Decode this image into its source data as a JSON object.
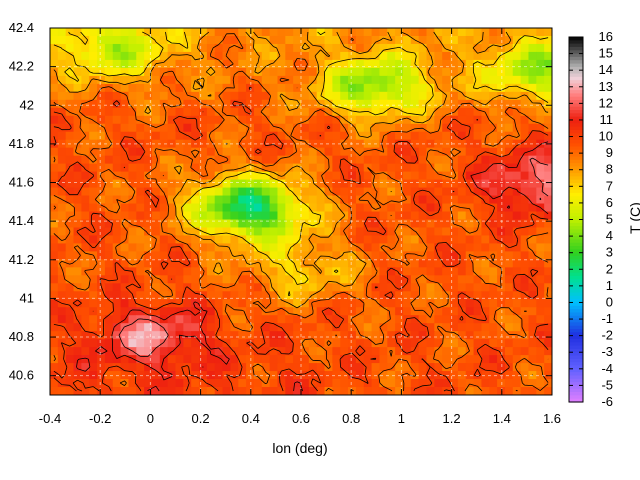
{
  "chart_data": {
    "type": "heatmap",
    "title": "",
    "xlabel": "lon (deg)",
    "ylabel": "",
    "colorbar_label": "T (C)",
    "xlim": [
      -0.4,
      1.6
    ],
    "ylim": [
      40.5,
      42.4
    ],
    "x_ticks": [
      -0.4,
      -0.2,
      0,
      0.2,
      0.4,
      0.6,
      0.8,
      1,
      1.2,
      1.4,
      1.6
    ],
    "x_tick_labels": [
      "-0.4",
      "-0.2",
      "0",
      "0.2",
      "0.4",
      "0.6",
      "0.8",
      "1",
      "1.2",
      "1.4",
      "1.6"
    ],
    "y_ticks": [
      40.6,
      40.8,
      41,
      41.2,
      41.4,
      41.6,
      41.8,
      42,
      42.2,
      42.4
    ],
    "y_tick_labels": [
      "40.6",
      "40.8",
      "41",
      "41.2",
      "41.4",
      "41.6",
      "41.8",
      "42",
      "42.2",
      "42.4"
    ],
    "colorbar_range": [
      -6,
      16
    ],
    "colorbar_ticks": [
      16,
      15,
      14,
      13,
      12,
      11,
      10,
      9,
      8,
      7,
      6,
      5,
      4,
      3,
      2,
      1,
      0,
      -1,
      -2,
      -3,
      -4,
      -5,
      -6
    ],
    "colorbar_tick_labels": [
      "16",
      "15",
      "14",
      "13",
      "12",
      "11",
      "10",
      "9",
      "8",
      "7",
      "6",
      "5",
      "4",
      "3",
      "2",
      "1",
      "0",
      "-1",
      "-2",
      "-3",
      "-4",
      "-5",
      "-6"
    ],
    "grid": true,
    "contours": true,
    "colormap_stops": [
      {
        "value": -6,
        "color": "#e080ff"
      },
      {
        "value": -4,
        "color": "#6060ff"
      },
      {
        "value": -2,
        "color": "#2030e0"
      },
      {
        "value": 0,
        "color": "#00c0ff"
      },
      {
        "value": 1.5,
        "color": "#00e090"
      },
      {
        "value": 3,
        "color": "#30d020"
      },
      {
        "value": 5,
        "color": "#c0f000"
      },
      {
        "value": 6.5,
        "color": "#ffee00"
      },
      {
        "value": 8,
        "color": "#ff9a00"
      },
      {
        "value": 9.5,
        "color": "#ff5000"
      },
      {
        "value": 11,
        "color": "#ee2010"
      },
      {
        "value": 12.5,
        "color": "#ff8080"
      },
      {
        "value": 13.5,
        "color": "#f0d0d8"
      },
      {
        "value": 14.2,
        "color": "#b0b0b0"
      },
      {
        "value": 15,
        "color": "#606060"
      },
      {
        "value": 16,
        "color": "#000000"
      }
    ],
    "features": [
      {
        "name": "yellow-valley",
        "x": 0.35,
        "y": 41.5,
        "value": 6.5
      },
      {
        "name": "green-patch-center",
        "x": 0.42,
        "y": 41.45,
        "value": 4.5
      },
      {
        "name": "yellow-south-spur",
        "x": 0.6,
        "y": 41.15,
        "value": 7
      },
      {
        "name": "green-north-center",
        "x": 0.9,
        "y": 42.1,
        "value": 4
      },
      {
        "name": "green-north-east",
        "x": 1.55,
        "y": 42.18,
        "value": 4.5
      },
      {
        "name": "green-north-left",
        "x": -0.15,
        "y": 42.3,
        "value": 5
      },
      {
        "name": "pink-southwest",
        "x": 0.0,
        "y": 40.8,
        "value": 12.5
      },
      {
        "name": "pink-east",
        "x": 1.55,
        "y": 41.6,
        "value": 12.5
      },
      {
        "name": "warm-coast-southeast",
        "x": 1.2,
        "y": 40.7,
        "value": 9.5
      }
    ]
  }
}
